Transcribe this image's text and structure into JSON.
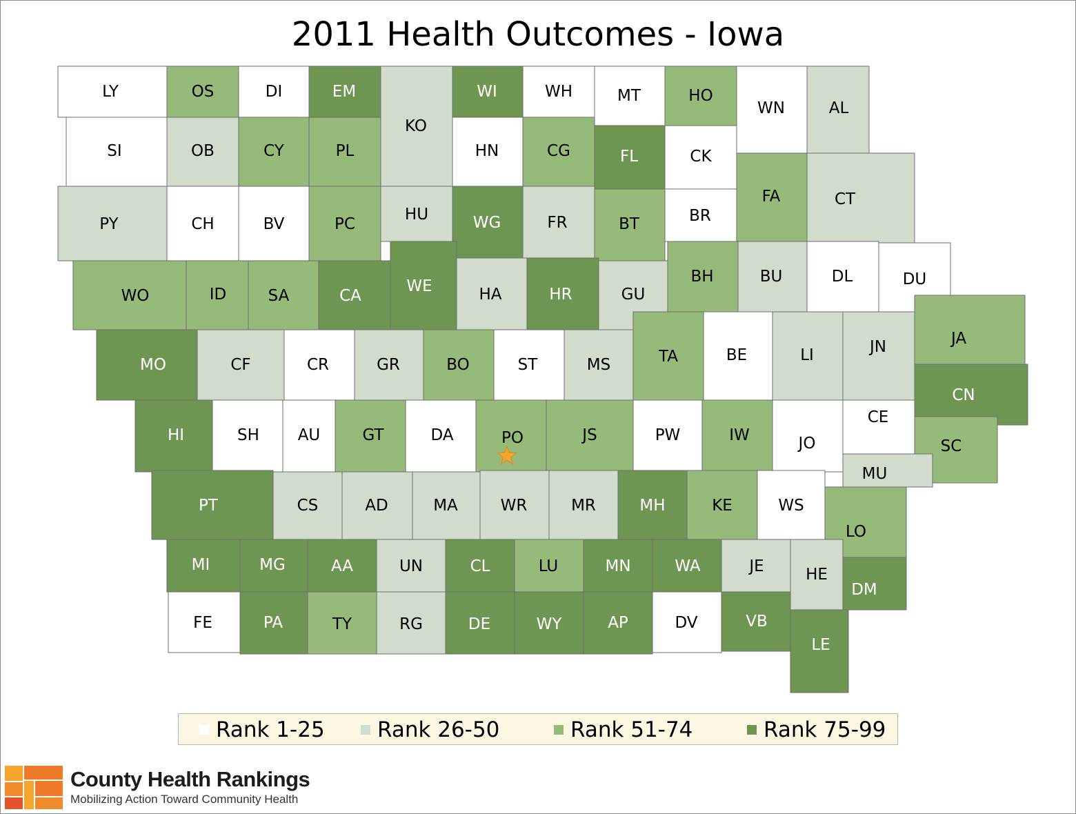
{
  "title": "2011 Health Outcomes - Iowa",
  "colors": {
    "rank_1_25": "#ffffff",
    "rank_26_50": "#d1dccd",
    "rank_51_74": "#96ba7a",
    "rank_75_99": "#6e9552",
    "border": "#6e6e6e",
    "star": "#f7a42d"
  },
  "legend": [
    {
      "label": "Rank 1-25",
      "color": "#ffffff"
    },
    {
      "label": "Rank 26-50",
      "color": "#d1dccd"
    },
    {
      "label": "Rank 51-74",
      "color": "#96ba7a"
    },
    {
      "label": "Rank 75-99",
      "color": "#6e9552"
    }
  ],
  "counties": [
    {
      "abbr": "LY",
      "rank_group": 1
    },
    {
      "abbr": "OS",
      "rank_group": 3
    },
    {
      "abbr": "DI",
      "rank_group": 1
    },
    {
      "abbr": "EM",
      "rank_group": 4
    },
    {
      "abbr": "KO",
      "rank_group": 2
    },
    {
      "abbr": "WI",
      "rank_group": 4
    },
    {
      "abbr": "WH",
      "rank_group": 1
    },
    {
      "abbr": "MT",
      "rank_group": 1
    },
    {
      "abbr": "HO",
      "rank_group": 3
    },
    {
      "abbr": "WN",
      "rank_group": 1
    },
    {
      "abbr": "AL",
      "rank_group": 2
    },
    {
      "abbr": "SI",
      "rank_group": 1
    },
    {
      "abbr": "OB",
      "rank_group": 2
    },
    {
      "abbr": "CY",
      "rank_group": 3
    },
    {
      "abbr": "PL",
      "rank_group": 3
    },
    {
      "abbr": "HN",
      "rank_group": 1
    },
    {
      "abbr": "CG",
      "rank_group": 3
    },
    {
      "abbr": "FL",
      "rank_group": 4
    },
    {
      "abbr": "CK",
      "rank_group": 1
    },
    {
      "abbr": "FA",
      "rank_group": 3
    },
    {
      "abbr": "CT",
      "rank_group": 2
    },
    {
      "abbr": "PY",
      "rank_group": 2
    },
    {
      "abbr": "CH",
      "rank_group": 1
    },
    {
      "abbr": "BV",
      "rank_group": 1
    },
    {
      "abbr": "PC",
      "rank_group": 3
    },
    {
      "abbr": "HU",
      "rank_group": 2
    },
    {
      "abbr": "WG",
      "rank_group": 4
    },
    {
      "abbr": "FR",
      "rank_group": 2
    },
    {
      "abbr": "BT",
      "rank_group": 3
    },
    {
      "abbr": "BR",
      "rank_group": 1
    },
    {
      "abbr": "WO",
      "rank_group": 3
    },
    {
      "abbr": "ID",
      "rank_group": 3
    },
    {
      "abbr": "SA",
      "rank_group": 3
    },
    {
      "abbr": "CA",
      "rank_group": 4
    },
    {
      "abbr": "WE",
      "rank_group": 4
    },
    {
      "abbr": "HA",
      "rank_group": 2
    },
    {
      "abbr": "HR",
      "rank_group": 4
    },
    {
      "abbr": "GU",
      "rank_group": 2
    },
    {
      "abbr": "BH",
      "rank_group": 3
    },
    {
      "abbr": "BU",
      "rank_group": 2
    },
    {
      "abbr": "DL",
      "rank_group": 1
    },
    {
      "abbr": "DU",
      "rank_group": 1
    },
    {
      "abbr": "MO",
      "rank_group": 4
    },
    {
      "abbr": "CF",
      "rank_group": 2
    },
    {
      "abbr": "CR",
      "rank_group": 1
    },
    {
      "abbr": "GR",
      "rank_group": 2
    },
    {
      "abbr": "BO",
      "rank_group": 3
    },
    {
      "abbr": "ST",
      "rank_group": 1
    },
    {
      "abbr": "MS",
      "rank_group": 2
    },
    {
      "abbr": "TA",
      "rank_group": 3
    },
    {
      "abbr": "BE",
      "rank_group": 1
    },
    {
      "abbr": "LI",
      "rank_group": 2
    },
    {
      "abbr": "JN",
      "rank_group": 2
    },
    {
      "abbr": "JA",
      "rank_group": 3
    },
    {
      "abbr": "CN",
      "rank_group": 4
    },
    {
      "abbr": "HI",
      "rank_group": 4
    },
    {
      "abbr": "SH",
      "rank_group": 1
    },
    {
      "abbr": "AU",
      "rank_group": 1
    },
    {
      "abbr": "GT",
      "rank_group": 3
    },
    {
      "abbr": "DA",
      "rank_group": 1
    },
    {
      "abbr": "PO",
      "rank_group": 3
    },
    {
      "abbr": "JS",
      "rank_group": 3
    },
    {
      "abbr": "PW",
      "rank_group": 1
    },
    {
      "abbr": "IW",
      "rank_group": 3
    },
    {
      "abbr": "JO",
      "rank_group": 1
    },
    {
      "abbr": "CE",
      "rank_group": 1
    },
    {
      "abbr": "SC",
      "rank_group": 3
    },
    {
      "abbr": "MU",
      "rank_group": 2
    },
    {
      "abbr": "PT",
      "rank_group": 4
    },
    {
      "abbr": "CS",
      "rank_group": 2
    },
    {
      "abbr": "AD",
      "rank_group": 2
    },
    {
      "abbr": "MA",
      "rank_group": 2
    },
    {
      "abbr": "WR",
      "rank_group": 2
    },
    {
      "abbr": "MR",
      "rank_group": 2
    },
    {
      "abbr": "MH",
      "rank_group": 4
    },
    {
      "abbr": "KE",
      "rank_group": 3
    },
    {
      "abbr": "WS",
      "rank_group": 1
    },
    {
      "abbr": "LO",
      "rank_group": 3
    },
    {
      "abbr": "MI",
      "rank_group": 4
    },
    {
      "abbr": "MG",
      "rank_group": 4
    },
    {
      "abbr": "AA",
      "rank_group": 4
    },
    {
      "abbr": "UN",
      "rank_group": 2
    },
    {
      "abbr": "CL",
      "rank_group": 4
    },
    {
      "abbr": "LU",
      "rank_group": 3
    },
    {
      "abbr": "MN",
      "rank_group": 4
    },
    {
      "abbr": "WA",
      "rank_group": 4
    },
    {
      "abbr": "JE",
      "rank_group": 2
    },
    {
      "abbr": "HE",
      "rank_group": 2
    },
    {
      "abbr": "DM",
      "rank_group": 4
    },
    {
      "abbr": "FE",
      "rank_group": 1
    },
    {
      "abbr": "PA",
      "rank_group": 4
    },
    {
      "abbr": "TY",
      "rank_group": 3
    },
    {
      "abbr": "RG",
      "rank_group": 2
    },
    {
      "abbr": "DE",
      "rank_group": 4
    },
    {
      "abbr": "WY",
      "rank_group": 4
    },
    {
      "abbr": "AP",
      "rank_group": 4
    },
    {
      "abbr": "DV",
      "rank_group": 1
    },
    {
      "abbr": "VB",
      "rank_group": 4
    },
    {
      "abbr": "LE",
      "rank_group": 4
    }
  ],
  "capital_marker": {
    "county": "PO",
    "icon": "star-icon"
  },
  "footer": {
    "brand_name": "County Health Rankings",
    "tagline": "Mobilizing Action Toward Community Health"
  }
}
